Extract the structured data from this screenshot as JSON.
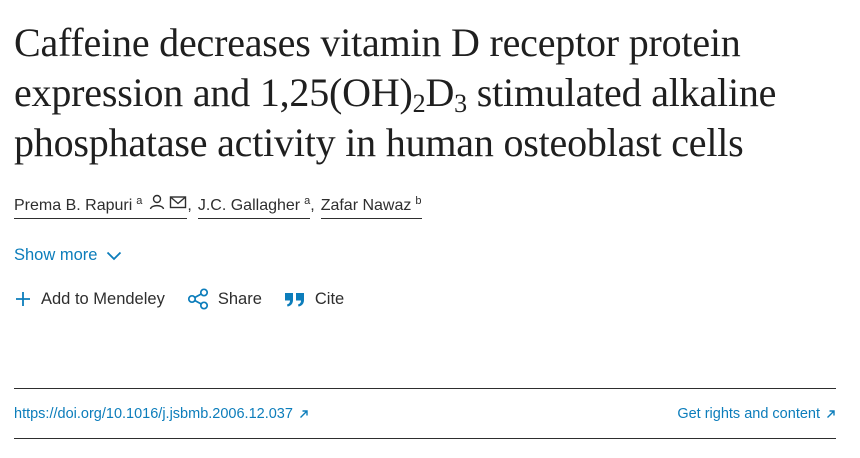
{
  "article": {
    "title_part1": "Caffeine decreases vitamin D receptor protein expression and 1,25(OH)",
    "title_sub1": "2",
    "title_part2": "D",
    "title_sub2": "3",
    "title_part3": " stimulated alkaline phosphatase activity in human osteoblast cells"
  },
  "authors": [
    {
      "name": "Prema B. Rapuri",
      "affiliation": "a",
      "icons": [
        "person-icon",
        "mail-icon"
      ]
    },
    {
      "name": "J.C. Gallagher",
      "affiliation": "a"
    },
    {
      "name": "Zafar Nawaz",
      "affiliation": "b"
    }
  ],
  "author_separator": ",",
  "show_more_label": "Show more",
  "actions": {
    "mendeley_label": "Add to Mendeley",
    "share_label": "Share",
    "cite_label": "Cite"
  },
  "links": {
    "doi_label": "https://doi.org/10.1016/j.jsbmb.2006.12.037",
    "rights_label": "Get rights and content"
  },
  "colors": {
    "link": "#0c7dbb",
    "text": "#2e2e2e"
  }
}
